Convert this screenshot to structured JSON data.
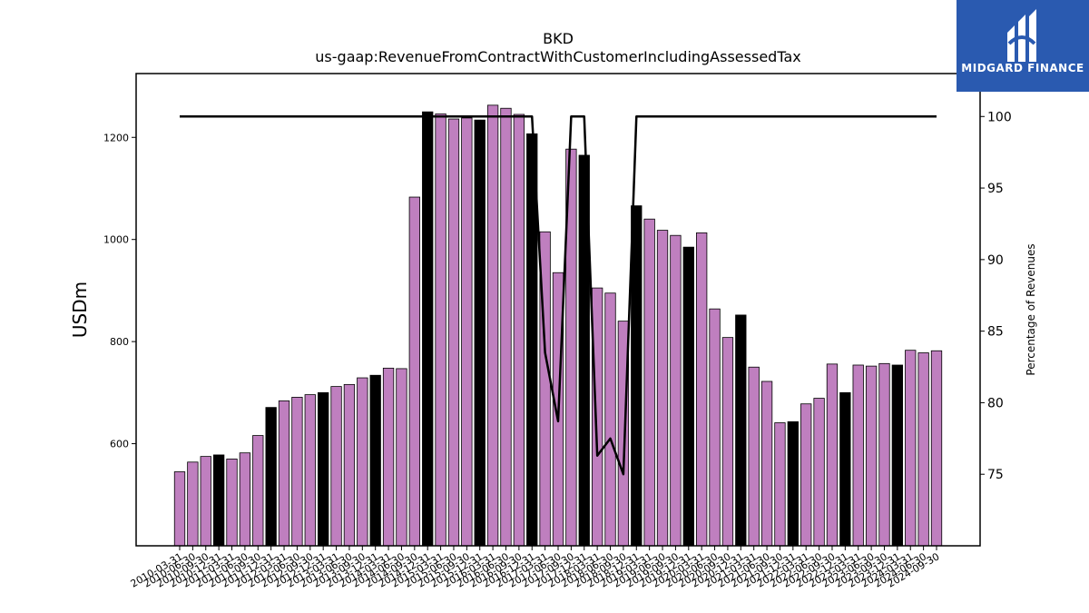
{
  "chart_data": {
    "type": "bar",
    "title": "BKD",
    "subtitle": "us-gaap:RevenueFromContractWithCustomerIncludingAssessedTax",
    "ylabel": "USDm",
    "y2label": "Percentage of Revenues",
    "ylim": [
      400,
      1325
    ],
    "y2lim": [
      70,
      103
    ],
    "yticks": [
      600,
      800,
      1000,
      1200
    ],
    "y2ticks": [
      75,
      80,
      85,
      90,
      95,
      100
    ],
    "categories": [
      "2010-03-31",
      "2010-06-30",
      "2010-09-30",
      "2010-12-31",
      "2011-03-31",
      "2011-06-30",
      "2011-09-30",
      "2011-12-31",
      "2012-03-31",
      "2012-06-30",
      "2012-09-30",
      "2012-12-31",
      "2013-03-31",
      "2013-06-30",
      "2013-09-30",
      "2013-12-31",
      "2014-03-31",
      "2014-06-30",
      "2014-09-30",
      "2014-12-31",
      "2015-03-31",
      "2015-06-30",
      "2015-09-30",
      "2015-12-31",
      "2016-03-31",
      "2016-06-30",
      "2016-09-30",
      "2016-12-31",
      "2017-03-31",
      "2017-06-30",
      "2017-09-30",
      "2017-12-31",
      "2018-03-31",
      "2018-06-30",
      "2018-09-30",
      "2018-12-31",
      "2019-03-31",
      "2019-06-30",
      "2019-09-30",
      "2019-12-31",
      "2020-03-31",
      "2020-06-30",
      "2020-09-30",
      "2020-12-31",
      "2021-03-31",
      "2021-06-30",
      "2021-09-30",
      "2021-12-31",
      "2022-03-31",
      "2022-06-30",
      "2022-09-30",
      "2022-12-31",
      "2023-03-31",
      "2023-06-30",
      "2023-09-30",
      "2023-12-31",
      "2024-03-31",
      "2024-06-30",
      "2024-09-30"
    ],
    "series": [
      {
        "values": [
          545,
          564,
          575,
          578,
          570,
          582,
          616,
          671,
          684,
          691,
          696,
          700,
          712,
          716,
          729,
          734,
          748,
          747,
          1083,
          1250,
          1246,
          1236,
          1238,
          1234,
          1263,
          1257,
          1245,
          1207,
          1015,
          935,
          1177,
          1165,
          905,
          895,
          840,
          1066,
          1040,
          1018,
          1008,
          985,
          1013,
          864,
          808,
          852,
          750,
          722,
          641,
          643,
          678,
          689,
          756,
          700,
          754,
          752,
          757,
          754,
          783,
          778,
          782
        ]
      },
      {
        "type": "line",
        "values": [
          100,
          100,
          100,
          100,
          100,
          100,
          100,
          100,
          100,
          100,
          100,
          100,
          100,
          100,
          100,
          100,
          100,
          100,
          100,
          100,
          100,
          100,
          100,
          100,
          100,
          100,
          100,
          100,
          83.5,
          78.7,
          100,
          100,
          76.3,
          77.5,
          75.0,
          100,
          100,
          100,
          100,
          100,
          100,
          100,
          100,
          100,
          100,
          100,
          100,
          100,
          100,
          100,
          100,
          100,
          100,
          100,
          100,
          100,
          100,
          100,
          100
        ]
      }
    ],
    "highlighted_categories": [
      "2010-12-31",
      "2011-12-31",
      "2012-12-31",
      "2013-12-31",
      "2014-12-31",
      "2015-12-31",
      "2016-12-31",
      "2017-12-31",
      "2018-12-31",
      "2019-12-31",
      "2020-12-31",
      "2021-12-31",
      "2022-12-31",
      "2023-12-31"
    ],
    "colors": {
      "bar": "#bf7fbf",
      "bar_highlight": "#000000",
      "line": "#000000"
    },
    "grid": false
  },
  "logo": {
    "text": "MIDGARD FINANCE",
    "background": "#2a5ab0"
  }
}
